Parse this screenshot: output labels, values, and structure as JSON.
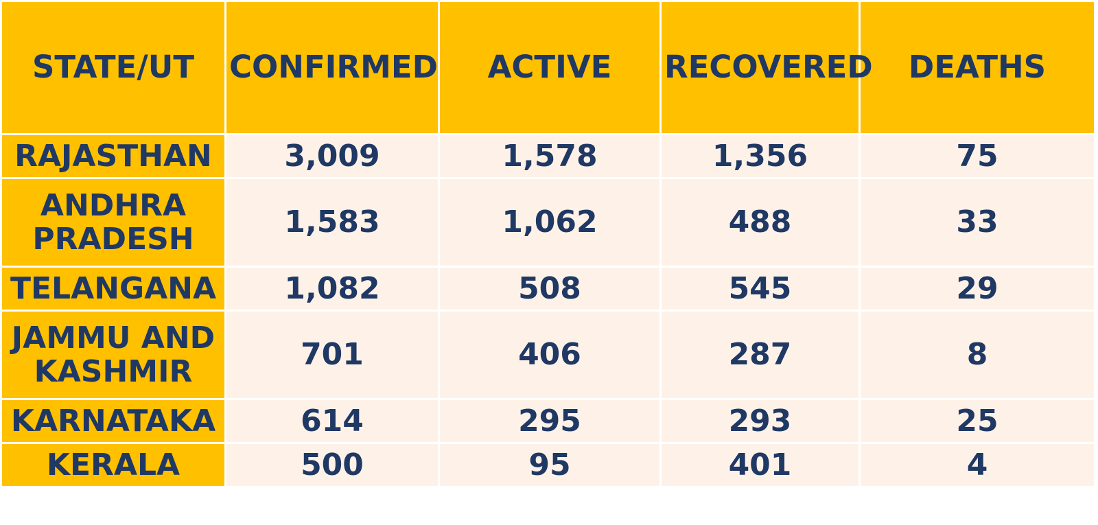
{
  "chart_data": {
    "type": "table",
    "columns": [
      "STATE/UT",
      "CONFIRMED",
      "ACTIVE",
      "RECOVERED",
      "DEATHS"
    ],
    "rows": [
      {
        "state": "RAJASTHAN",
        "confirmed": "3,009",
        "active": "1,578",
        "recovered": "1,356",
        "deaths": "75"
      },
      {
        "state": "ANDHRA PRADESH",
        "confirmed": "1,583",
        "active": "1,062",
        "recovered": "488",
        "deaths": "33"
      },
      {
        "state": "TELANGANA",
        "confirmed": "1,082",
        "active": "508",
        "recovered": "545",
        "deaths": "29"
      },
      {
        "state": "JAMMU AND KASHMIR",
        "confirmed": "701",
        "active": "406",
        "recovered": "287",
        "deaths": "8"
      },
      {
        "state": "KARNATAKA",
        "confirmed": "614",
        "active": "295",
        "recovered": "293",
        "deaths": "25"
      },
      {
        "state": "KERALA",
        "confirmed": "500",
        "active": "95",
        "recovered": "401",
        "deaths": "4"
      }
    ]
  },
  "colors": {
    "header_bg": "#ffc000",
    "cell_bg": "#fef2e8",
    "text": "#1f3864",
    "grid": "#ffffff"
  }
}
